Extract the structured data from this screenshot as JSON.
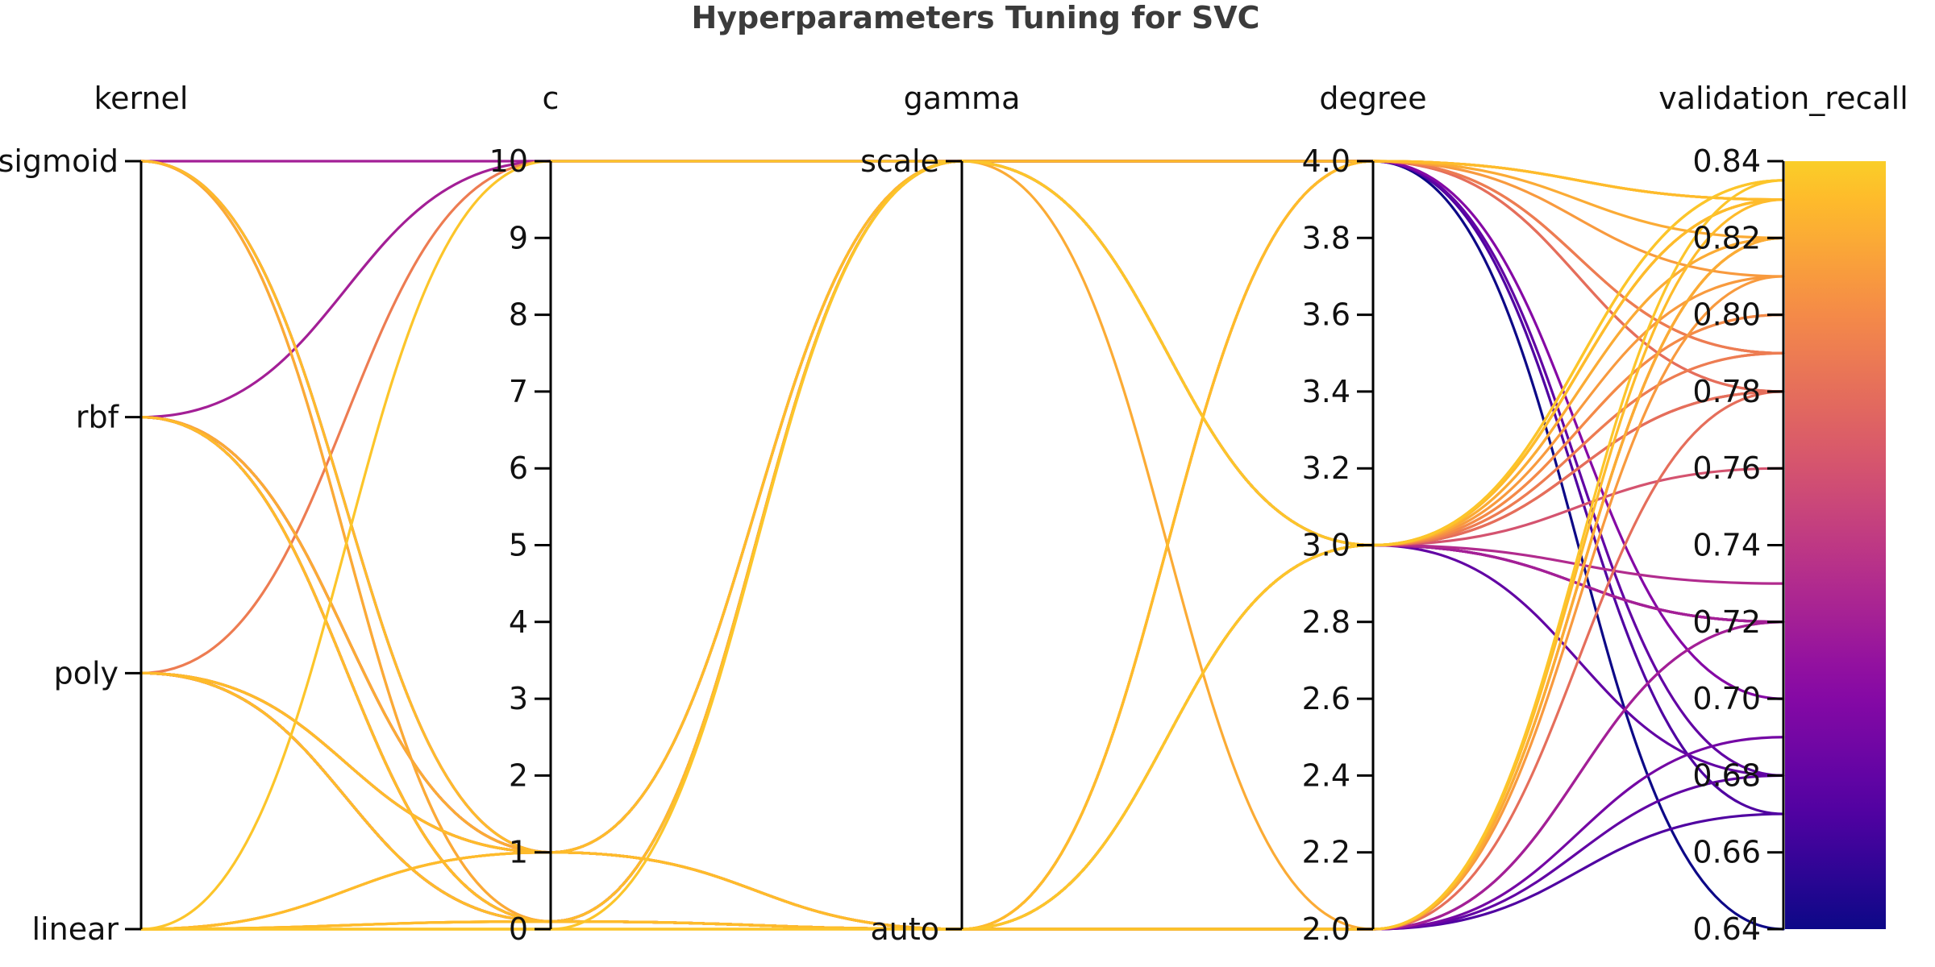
{
  "chart_data": {
    "type": "parallel_coordinates",
    "title": "Hyperparameters Tuning for SVC",
    "axes": [
      {
        "name": "kernel",
        "kind": "categorical",
        "categories": [
          "linear",
          "poly",
          "rbf",
          "sigmoid"
        ]
      },
      {
        "name": "c",
        "kind": "numeric",
        "range": [
          0,
          10
        ],
        "ticks": [
          0,
          1,
          2,
          3,
          4,
          5,
          6,
          7,
          8,
          9,
          10
        ]
      },
      {
        "name": "gamma",
        "kind": "categorical",
        "categories": [
          "auto",
          "scale"
        ]
      },
      {
        "name": "degree",
        "kind": "numeric",
        "range": [
          2.0,
          4.0
        ],
        "ticks": [
          2.0,
          2.2,
          2.4,
          2.6,
          2.8,
          3.0,
          3.2,
          3.4,
          3.6,
          3.8,
          4.0
        ]
      },
      {
        "name": "validation_recall",
        "kind": "numeric",
        "range": [
          0.64,
          0.84
        ],
        "ticks": [
          0.64,
          0.66,
          0.68,
          0.7,
          0.72,
          0.74,
          0.76,
          0.78,
          0.8,
          0.82,
          0.84
        ]
      }
    ],
    "colorbar": {
      "colormap": "plasma",
      "range": [
        0.64,
        0.84
      ]
    },
    "trials": [
      {
        "kernel": "sigmoid",
        "c": 10,
        "gamma": "scale",
        "degree": 3,
        "validation_recall": 0.72
      },
      {
        "kernel": "sigmoid",
        "c": 1,
        "gamma": "scale",
        "degree": 3,
        "validation_recall": 0.68
      },
      {
        "kernel": "sigmoid",
        "c": 1,
        "gamma": "auto",
        "degree": 3,
        "validation_recall": 0.79
      },
      {
        "kernel": "sigmoid",
        "c": 0.1,
        "gamma": "auto",
        "degree": 3,
        "validation_recall": 0.78
      },
      {
        "kernel": "sigmoid",
        "c": 1,
        "gamma": "auto",
        "degree": 4,
        "validation_recall": 0.83
      },
      {
        "kernel": "sigmoid",
        "c": 0.1,
        "gamma": "auto",
        "degree": 2,
        "validation_recall": 0.82
      },
      {
        "kernel": "rbf",
        "c": 10,
        "gamma": "scale",
        "degree": 3,
        "validation_recall": 0.72
      },
      {
        "kernel": "rbf",
        "c": 1,
        "gamma": "scale",
        "degree": 3,
        "validation_recall": 0.78
      },
      {
        "kernel": "rbf",
        "c": 0.1,
        "gamma": "auto",
        "degree": 3,
        "validation_recall": 0.8
      },
      {
        "kernel": "rbf",
        "c": 1,
        "gamma": "auto",
        "degree": 2,
        "validation_recall": 0.82
      },
      {
        "kernel": "rbf",
        "c": 0.1,
        "gamma": "auto",
        "degree": 3,
        "validation_recall": 0.83
      },
      {
        "kernel": "rbf",
        "c": 1,
        "gamma": "auto",
        "degree": 3,
        "validation_recall": 0.81
      },
      {
        "kernel": "rbf",
        "c": 0.1,
        "gamma": "auto",
        "degree": 2,
        "validation_recall": 0.82
      },
      {
        "kernel": "poly",
        "c": 10,
        "gamma": "scale",
        "degree": 4,
        "validation_recall": 0.79
      },
      {
        "kernel": "poly",
        "c": 1,
        "gamma": "auto",
        "degree": 2,
        "validation_recall": 0.81
      },
      {
        "kernel": "poly",
        "c": 0.1,
        "gamma": "auto",
        "degree": 3,
        "validation_recall": 0.82
      },
      {
        "kernel": "poly",
        "c": 1,
        "gamma": "scale",
        "degree": 4,
        "validation_recall": 0.83
      },
      {
        "kernel": "poly",
        "c": 0.1,
        "gamma": "auto",
        "degree": 2,
        "validation_recall": 0.78
      },
      {
        "kernel": "poly",
        "c": 1,
        "gamma": "auto",
        "degree": 4,
        "validation_recall": 0.82
      },
      {
        "kernel": "poly",
        "c": 0.1,
        "gamma": "auto",
        "degree": 3,
        "validation_recall": 0.83
      },
      {
        "kernel": "poly",
        "c": 1,
        "gamma": "auto",
        "degree": 3,
        "validation_recall": 0.8
      },
      {
        "kernel": "linear",
        "c": 10,
        "gamma": "scale",
        "degree": 3,
        "validation_recall": 0.835
      },
      {
        "kernel": "linear",
        "c": 1,
        "gamma": "auto",
        "degree": 3,
        "validation_recall": 0.82
      },
      {
        "kernel": "linear",
        "c": 0.1,
        "gamma": "auto",
        "degree": 3,
        "validation_recall": 0.83
      },
      {
        "kernel": "linear",
        "c": 0.1,
        "gamma": "scale",
        "degree": 3,
        "validation_recall": 0.83
      },
      {
        "kernel": "linear",
        "c": 0,
        "gamma": "auto",
        "degree": 2,
        "validation_recall": 0.835
      },
      {
        "kernel": "linear",
        "c": 0,
        "gamma": "auto",
        "degree": 4,
        "validation_recall": 0.83
      },
      {
        "kernel": "linear",
        "c": 0.1,
        "gamma": "auto",
        "degree": 2,
        "validation_recall": 0.83
      },
      {
        "kernel": "linear",
        "c": 1,
        "gamma": "auto",
        "degree": 2,
        "validation_recall": 0.82
      },
      {
        "kernel": "linear",
        "c": 0.1,
        "gamma": "auto",
        "degree": 4,
        "validation_recall": 0.83
      },
      {
        "kernel": "linear",
        "c": 1,
        "gamma": "scale",
        "degree": 3,
        "validation_recall": 0.83
      },
      {
        "kernel": "linear",
        "c": 0,
        "gamma": "auto",
        "degree": 3,
        "validation_recall": 0.835
      },
      {
        "kernel": "linear",
        "c": 1,
        "gamma": "scale",
        "degree": 4,
        "validation_recall": 0.83
      },
      {
        "kernel": "linear",
        "c": 0.1,
        "gamma": "scale",
        "degree": 2,
        "validation_recall": 0.82
      },
      {
        "kernel": "linear",
        "c": 0,
        "gamma": "scale",
        "degree": 3,
        "validation_recall": 0.835
      },
      {
        "kernel": "linear",
        "c": 1,
        "gamma": "auto",
        "degree": 4,
        "validation_recall": 0.81
      },
      {
        "kernel": "poly",
        "c": 1,
        "gamma": "scale",
        "degree": 3,
        "validation_recall": 0.78
      },
      {
        "kernel": "rbf",
        "c": 1,
        "gamma": "scale",
        "degree": 3,
        "validation_recall": 0.76
      },
      {
        "kernel": "poly",
        "c": 0.1,
        "gamma": "scale",
        "degree": 3,
        "validation_recall": 0.79
      },
      {
        "kernel": "rbf",
        "c": 0.1,
        "gamma": "auto",
        "degree": 4,
        "validation_recall": 0.78
      },
      {
        "kernel": "poly",
        "c": 1,
        "gamma": "auto",
        "degree": 4,
        "validation_recall": 0.78
      },
      {
        "kernel": "poly",
        "c": 0.1,
        "gamma": "auto",
        "degree": 4,
        "validation_recall": 0.79
      },
      {
        "kernel": "rbf",
        "c": 0.1,
        "gamma": "scale",
        "degree": 4,
        "validation_recall": 0.79
      },
      {
        "kernel": "poly",
        "c": 1,
        "gamma": "auto",
        "degree": 3,
        "validation_recall": 0.72
      },
      {
        "kernel": "rbf",
        "c": 0.1,
        "gamma": "scale",
        "degree": 3,
        "validation_recall": 0.72
      },
      {
        "kernel": "poly",
        "c": 0.1,
        "gamma": "auto",
        "degree": 3,
        "validation_recall": 0.73
      },
      {
        "kernel": "rbf",
        "c": 1,
        "gamma": "auto",
        "degree": 3,
        "validation_recall": 0.72
      },
      {
        "kernel": "poly",
        "c": 0.1,
        "gamma": "auto",
        "degree": 2,
        "validation_recall": 0.72
      },
      {
        "kernel": "rbf",
        "c": 0.1,
        "gamma": "auto",
        "degree": 2,
        "validation_recall": 0.72
      },
      {
        "kernel": "poly",
        "c": 0.1,
        "gamma": "auto",
        "degree": 2,
        "validation_recall": 0.69
      },
      {
        "kernel": "rbf",
        "c": 0.1,
        "gamma": "scale",
        "degree": 4,
        "validation_recall": 0.7
      },
      {
        "kernel": "poly",
        "c": 0.1,
        "gamma": "scale",
        "degree": 4,
        "validation_recall": 0.68
      },
      {
        "kernel": "rbf",
        "c": 1,
        "gamma": "scale",
        "degree": 4,
        "validation_recall": 0.67
      },
      {
        "kernel": "poly",
        "c": 0.1,
        "gamma": "scale",
        "degree": 4,
        "validation_recall": 0.64
      },
      {
        "kernel": "rbf",
        "c": 0.1,
        "gamma": "auto",
        "degree": 2,
        "validation_recall": 0.68
      },
      {
        "kernel": "poly",
        "c": 1,
        "gamma": "auto",
        "degree": 2,
        "validation_recall": 0.67
      }
    ]
  }
}
